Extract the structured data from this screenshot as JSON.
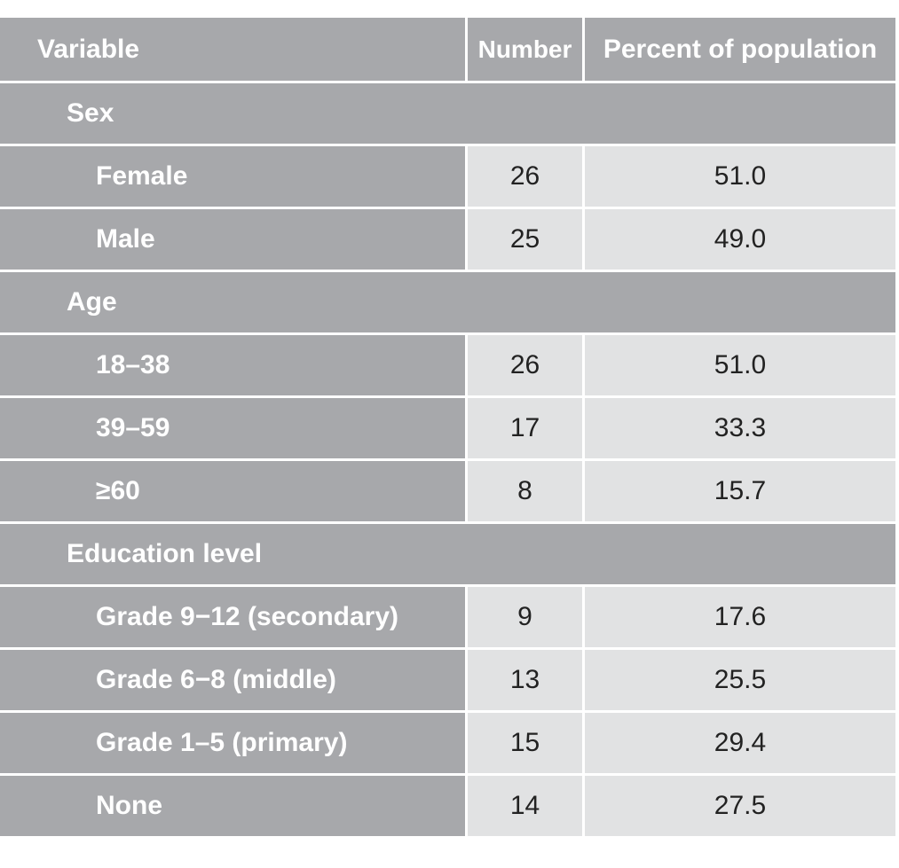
{
  "header": {
    "variable": "Variable",
    "number": "Number",
    "percent": "Percent of population"
  },
  "sections": [
    {
      "label": "Sex",
      "rows": [
        {
          "label": "Female",
          "number": "26",
          "percent": "51.0"
        },
        {
          "label": "Male",
          "number": "25",
          "percent": "49.0"
        }
      ]
    },
    {
      "label": "Age",
      "rows": [
        {
          "label": "18–38",
          "number": "26",
          "percent": "51.0"
        },
        {
          "label": "39–59",
          "number": "17",
          "percent": "33.3"
        },
        {
          "label": "≥60",
          "number": "8",
          "percent": "15.7"
        }
      ]
    },
    {
      "label": "Education level",
      "rows": [
        {
          "label": "Grade 9−12 (secondary)",
          "number": "9",
          "percent": "17.6"
        },
        {
          "label": "Grade 6−8 (middle)",
          "number": "13",
          "percent": "25.5"
        },
        {
          "label": "Grade 1–5 (primary)",
          "number": "15",
          "percent": "29.4"
        },
        {
          "label": "None",
          "number": "14",
          "percent": "27.5"
        }
      ]
    }
  ]
}
